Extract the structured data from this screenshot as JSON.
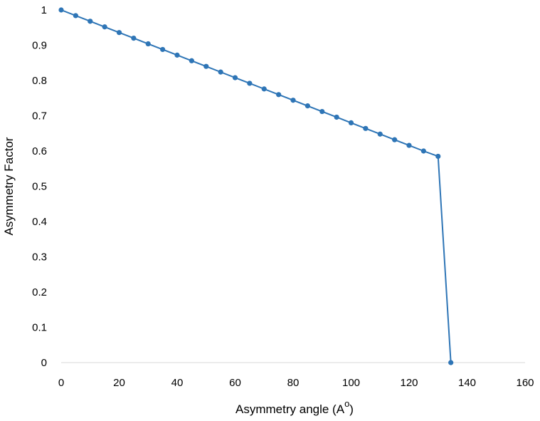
{
  "chart_data": {
    "type": "line",
    "title": "",
    "xlabel": "Asymmetry angle (A",
    "xlabel_superscript": "o",
    "xlabel_suffix": ")",
    "ylabel": "Asymmetry Factor",
    "xlim": [
      0,
      160
    ],
    "ylim": [
      0,
      1
    ],
    "x_ticks": [
      "0",
      "20",
      "40",
      "60",
      "80",
      "100",
      "120",
      "140",
      "160"
    ],
    "y_ticks": [
      "0",
      "0.1",
      "0.2",
      "0.3",
      "0.4",
      "0.5",
      "0.6",
      "0.7",
      "0.8",
      "0.9",
      "1"
    ],
    "grid": false,
    "legend": "none",
    "series": [
      {
        "color": "#2E75B6",
        "x": [
          0,
          5,
          10,
          15,
          20,
          25,
          30,
          35,
          40,
          45,
          50,
          55,
          60,
          65,
          70,
          75,
          80,
          85,
          90,
          95,
          100,
          105,
          110,
          115,
          120,
          125,
          130,
          134.4
        ],
        "y": [
          1.0,
          0.984,
          0.968,
          0.952,
          0.936,
          0.92,
          0.904,
          0.888,
          0.872,
          0.856,
          0.84,
          0.824,
          0.808,
          0.792,
          0.776,
          0.76,
          0.744,
          0.728,
          0.712,
          0.696,
          0.68,
          0.664,
          0.648,
          0.632,
          0.616,
          0.6,
          0.585,
          0.0
        ]
      }
    ]
  }
}
